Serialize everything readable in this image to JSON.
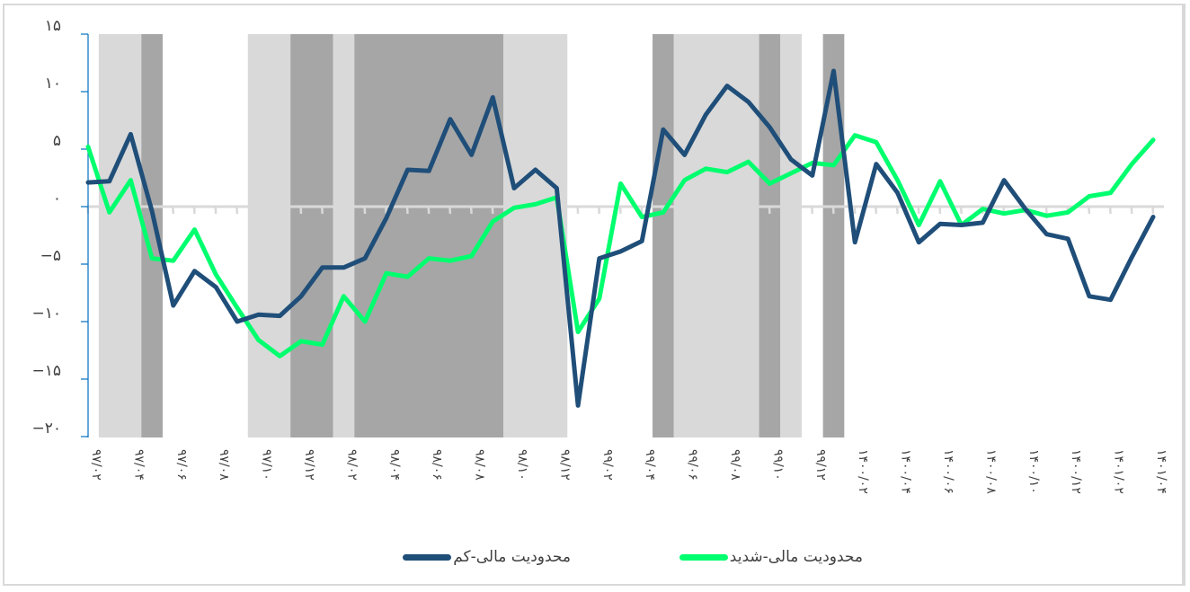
{
  "chart_data": {
    "type": "line",
    "title": "",
    "xlabel": "",
    "ylabel": "",
    "ylim": [
      -20,
      15
    ],
    "yticks": [
      15,
      10,
      5,
      0,
      -5,
      -10,
      -15,
      -20
    ],
    "ytick_labels": [
      "۱۵",
      "۱۰",
      "۵",
      "۰",
      "−۵",
      "−۱۰",
      "−۱۵",
      "−۲۰"
    ],
    "grid": false,
    "legend_position": "bottom",
    "x": [
      "97/02",
      "97/03",
      "97/04",
      "97/05",
      "97/06",
      "97/07",
      "97/08",
      "97/09",
      "97/10",
      "97/11",
      "97/12",
      "98/01",
      "98/02",
      "98/03",
      "98/04",
      "98/05",
      "98/06",
      "98/07",
      "98/08",
      "98/09",
      "98/10",
      "98/11",
      "98/12",
      "99/01",
      "99/02",
      "99/03",
      "99/04",
      "99/05",
      "99/06",
      "99/07",
      "99/08",
      "99/09",
      "99/10",
      "99/11",
      "99/12",
      "1400/01",
      "1400/02",
      "1400/03",
      "1400/04",
      "1400/05",
      "1400/06",
      "1400/07",
      "1400/08",
      "1400/09",
      "1400/10",
      "1400/11",
      "1400/12",
      "1401/01",
      "1401/02",
      "1401/03",
      "1401/04"
    ],
    "xtick_labels": [
      "۹۷/۰۲",
      "۹۷/۰۴",
      "۹۷/۰۶",
      "۹۷/۰۸",
      "۹۷/۱۰",
      "۹۷/۱۲",
      "۹۸/۰۲",
      "۹۸/۰۴",
      "۹۸/۰۶",
      "۹۸/۰۸",
      "۹۸/۱۰",
      "۹۸/۱۲",
      "۹۹/۰۲",
      "۹۹/۰۴",
      "۹۹/۰۶",
      "۹۹/۰۸",
      "۹۹/۱۰",
      "۹۹/۱۲",
      "۱۴۰۰/۰۲",
      "۱۴۰۰/۰۴",
      "۱۴۰۰/۰۶",
      "۱۴۰۰/۰۸",
      "۱۴۰۰/۱۰",
      "۱۴۰۰/۱۲",
      "۱۴۰۱/۰۲",
      "۱۴۰۱/۰۴"
    ],
    "series": [
      {
        "name": "محدودیت مالی-کم",
        "color": "#1f4e79",
        "values": [
          2.1,
          2.2,
          6.3,
          -0.4,
          -8.6,
          -5.6,
          -7.0,
          -10.0,
          -9.4,
          -9.5,
          -7.8,
          -5.3,
          -5.3,
          -4.5,
          -1.0,
          3.2,
          3.1,
          7.6,
          4.5,
          9.5,
          1.6,
          3.2,
          1.6,
          -17.3,
          -4.5,
          -3.9,
          -3.0,
          6.7,
          4.5,
          8.0,
          10.5,
          9.1,
          6.9,
          4.1,
          2.7,
          11.8,
          -3.1,
          3.7,
          1.2,
          -3.1,
          -1.5,
          -1.6,
          -1.4,
          2.3,
          -0.2,
          -2.4,
          -2.8,
          -7.8,
          -8.1,
          -4.4,
          -0.9
        ]
      },
      {
        "name": "محدودیت مالی-شدید",
        "color": "#00ff6e",
        "values": [
          5.2,
          -0.5,
          2.3,
          -4.5,
          -4.7,
          -2.0,
          -5.9,
          -8.8,
          -11.6,
          -13.0,
          -11.7,
          -12.0,
          -7.8,
          -10.0,
          -5.8,
          -6.1,
          -4.5,
          -4.7,
          -4.3,
          -1.3,
          -0.1,
          0.2,
          0.8,
          -10.9,
          -8.0,
          2.0,
          -0.9,
          -0.5,
          2.3,
          3.3,
          3.0,
          3.9,
          2.0,
          2.9,
          3.8,
          3.6,
          6.2,
          5.6,
          2.3,
          -1.6,
          2.2,
          -1.6,
          -0.2,
          -0.6,
          -0.3,
          -0.8,
          -0.5,
          0.9,
          1.2,
          3.7,
          5.8
        ]
      }
    ],
    "shaded_bands": [
      {
        "from_index": 0.5,
        "to_index": 2.5,
        "shade": "light"
      },
      {
        "from_index": 2.5,
        "to_index": 3.5,
        "shade": "dark"
      },
      {
        "from_index": 7.5,
        "to_index": 9.5,
        "shade": "light"
      },
      {
        "from_index": 9.5,
        "to_index": 11.5,
        "shade": "dark"
      },
      {
        "from_index": 11.5,
        "to_index": 12.5,
        "shade": "light"
      },
      {
        "from_index": 12.5,
        "to_index": 19.5,
        "shade": "dark"
      },
      {
        "from_index": 19.5,
        "to_index": 22.5,
        "shade": "light"
      },
      {
        "from_index": 26.5,
        "to_index": 27.5,
        "shade": "dark"
      },
      {
        "from_index": 27.5,
        "to_index": 31.5,
        "shade": "light"
      },
      {
        "from_index": 31.5,
        "to_index": 32.5,
        "shade": "dark"
      },
      {
        "from_index": 32.5,
        "to_index": 33.5,
        "shade": "light"
      },
      {
        "from_index": 34.5,
        "to_index": 35.5,
        "shade": "dark"
      }
    ]
  },
  "legend": {
    "items": [
      {
        "label": "محدودیت مالی-شدید",
        "color": "#00ff6e"
      },
      {
        "label": "محدودیت مالی-کم",
        "color": "#1f4e79"
      }
    ]
  },
  "colors": {
    "axis": "#0070c0",
    "zero_line": "#d9d9d9",
    "band_light": "#d9d9d9",
    "band_dark": "#a6a6a6",
    "text": "#404040"
  }
}
